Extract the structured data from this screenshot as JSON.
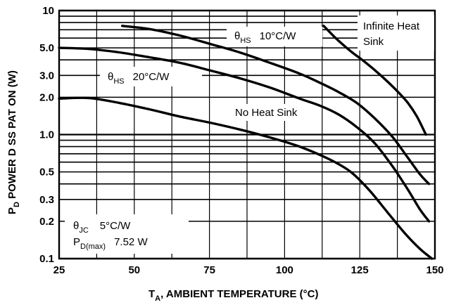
{
  "chart_data": {
    "type": "line",
    "xlabel_main": "T",
    "xlabel_sub": "A",
    "xlabel_rest": ", AMBIENT TEMPERATURE (°C)",
    "ylabel_main": "P",
    "ylabel_sub": "D",
    "ylabel_rest": " POWER D SS PAT ON (W)",
    "x_ticks": [
      25,
      50,
      75,
      100,
      125,
      150
    ],
    "y_ticks": [
      {
        "value": 0.1,
        "label": "0.1"
      },
      {
        "value": 0.2,
        "label": "0.2"
      },
      {
        "value": 0.3,
        "label": "0.3"
      },
      {
        "value": 0.5,
        "label": "0.5"
      },
      {
        "value": 1.0,
        "label": "1.0"
      },
      {
        "value": 2.0,
        "label": "2.0"
      },
      {
        "value": 3.0,
        "label": "3.0"
      },
      {
        "value": 5.0,
        "label": "5.0"
      },
      {
        "value": 10,
        "label": "10"
      }
    ],
    "y_gridlines": [
      0.1,
      0.2,
      0.3,
      0.4,
      0.5,
      0.6,
      0.7,
      0.8,
      0.9,
      1.0,
      2.0,
      3.0,
      4.0,
      5.0,
      6.0,
      7.0,
      8.0,
      9.0,
      10
    ],
    "x_gridlines": [
      25,
      37.5,
      50,
      62.5,
      75,
      87.5,
      100,
      112.5,
      125,
      137.5,
      150
    ],
    "xlim": [
      25,
      150
    ],
    "ylim": [
      0.1,
      10
    ],
    "yscale": "log",
    "series": [
      {
        "key": "infinite",
        "x": [
          113,
          117,
          122,
          127,
          132,
          137,
          141,
          144,
          147
        ],
        "y": [
          7.52,
          6.0,
          4.7,
          3.8,
          3.0,
          2.3,
          1.8,
          1.4,
          1.0
        ]
      },
      {
        "key": "hs10",
        "x": [
          46,
          55,
          65,
          75,
          85,
          95,
          105,
          112,
          118,
          124,
          130,
          136,
          141,
          145,
          148
        ],
        "y": [
          7.52,
          7.1,
          6.3,
          5.4,
          4.6,
          3.8,
          3.1,
          2.6,
          2.2,
          1.8,
          1.35,
          0.95,
          0.65,
          0.48,
          0.4
        ]
      },
      {
        "key": "hs20",
        "x": [
          25,
          35,
          45,
          55,
          65,
          75,
          85,
          95,
          105,
          112,
          118,
          124,
          130,
          136,
          141,
          145,
          148
        ],
        "y": [
          5.0,
          4.9,
          4.6,
          4.2,
          3.8,
          3.3,
          2.85,
          2.4,
          1.95,
          1.7,
          1.45,
          1.15,
          0.85,
          0.55,
          0.36,
          0.25,
          0.2
        ]
      },
      {
        "key": "nohs",
        "x": [
          25,
          35,
          45,
          55,
          65,
          75,
          85,
          95,
          105,
          115,
          122,
          128,
          134,
          140,
          145,
          149
        ],
        "y": [
          1.95,
          1.97,
          1.8,
          1.6,
          1.4,
          1.25,
          1.1,
          0.95,
          0.8,
          0.63,
          0.5,
          0.36,
          0.24,
          0.16,
          0.12,
          0.1
        ]
      }
    ],
    "annotations": {
      "infinite_line1": "Infinite Heat",
      "infinite_line2": "Sink",
      "hs10_theta": "θ",
      "hs10_sub": "HS",
      "hs10_value": "10°C/W",
      "hs20_theta": "θ",
      "hs20_sub": "HS",
      "hs20_value": "20°C/W",
      "nohs": "No Heat Sink",
      "jc_theta": "θ",
      "jc_sub": "JC",
      "jc_value": "5°C/W",
      "pd_main": "P",
      "pd_sub": "D(max)",
      "pd_value": "7.52 W"
    }
  }
}
